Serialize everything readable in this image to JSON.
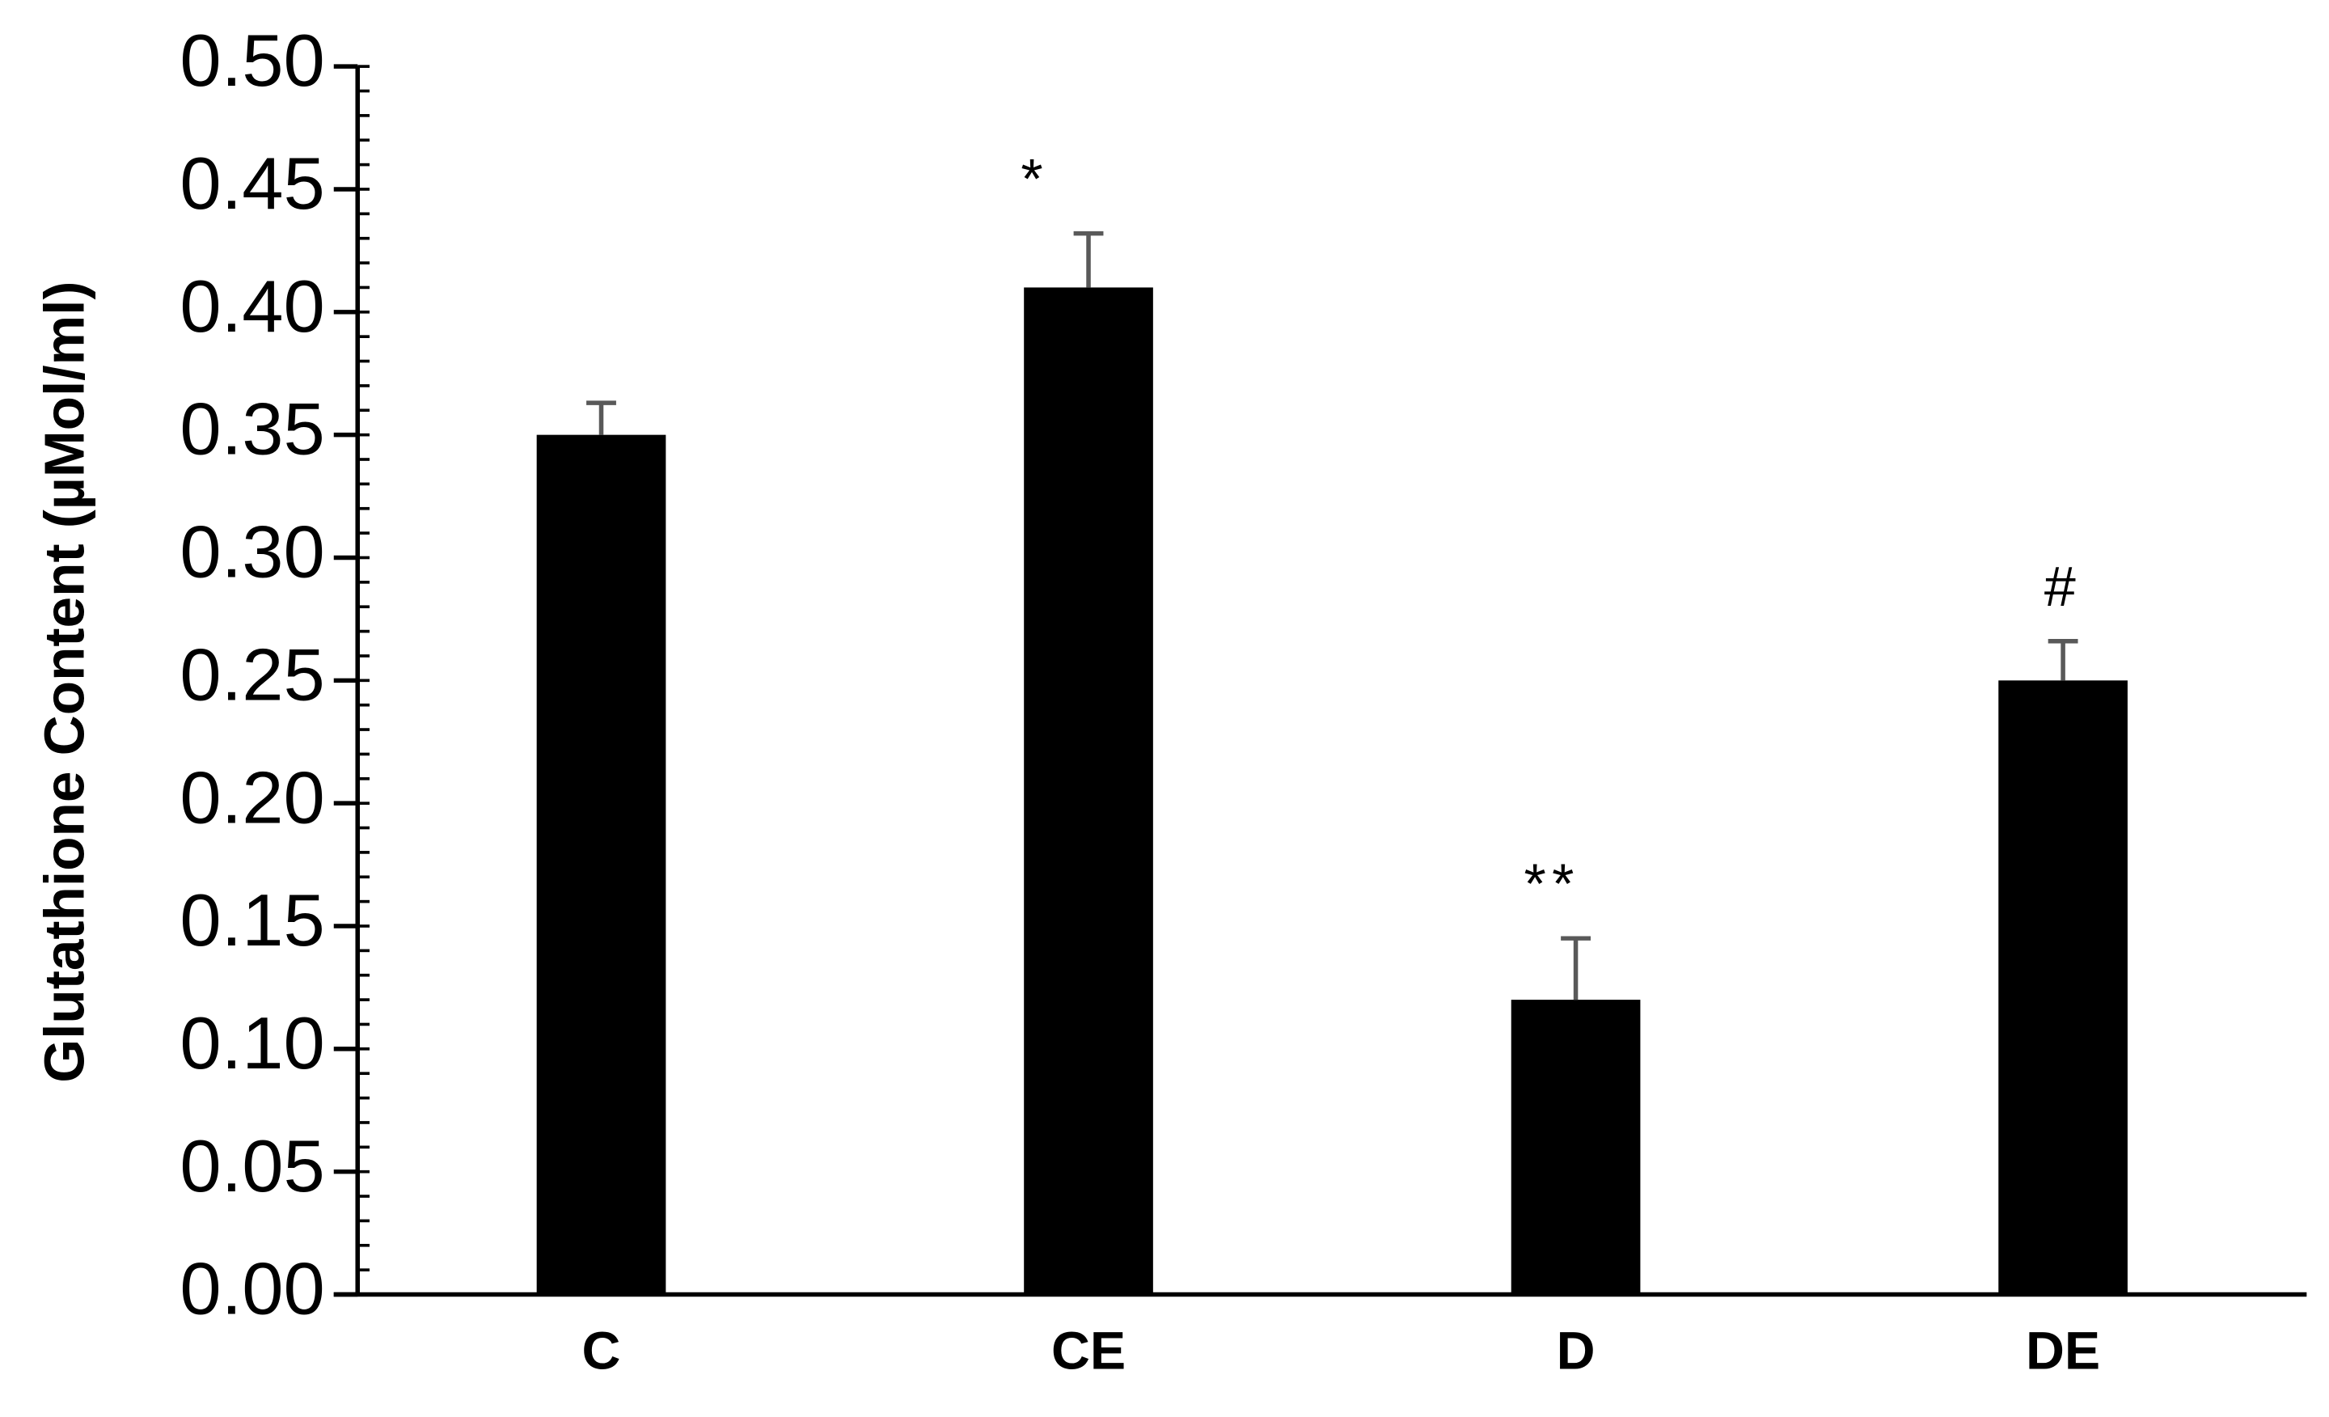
{
  "chart_data": {
    "type": "bar",
    "y_label": "Glutathione Content (µMol/ml)",
    "categories": [
      "C",
      "CE",
      "D",
      "DE"
    ],
    "values": [
      0.35,
      0.41,
      0.12,
      0.25
    ],
    "errors": [
      0.013,
      0.022,
      0.025,
      0.016
    ],
    "markers": [
      null,
      "*",
      "**",
      "#"
    ],
    "color": "#000000",
    "error_color": "#595959",
    "ylim": [
      0,
      0.5
    ],
    "yticks": [
      {
        "value": 0,
        "label": "0.00"
      },
      {
        "value": 0.05,
        "label": "0.05"
      },
      {
        "value": 0.1,
        "label": "0.10"
      },
      {
        "value": 0.15,
        "label": "0.15"
      },
      {
        "value": 0.2,
        "label": "0.20"
      },
      {
        "value": 0.25,
        "label": "0.25"
      },
      {
        "value": 0.3,
        "label": "0.30"
      },
      {
        "value": 0.35,
        "label": "0.35"
      },
      {
        "value": 0.4,
        "label": "0.40"
      },
      {
        "value": 0.45,
        "label": "0.45"
      },
      {
        "value": 0.5,
        "label": "0.50"
      }
    ],
    "yminor_step": 0.01,
    "grid": false
  }
}
